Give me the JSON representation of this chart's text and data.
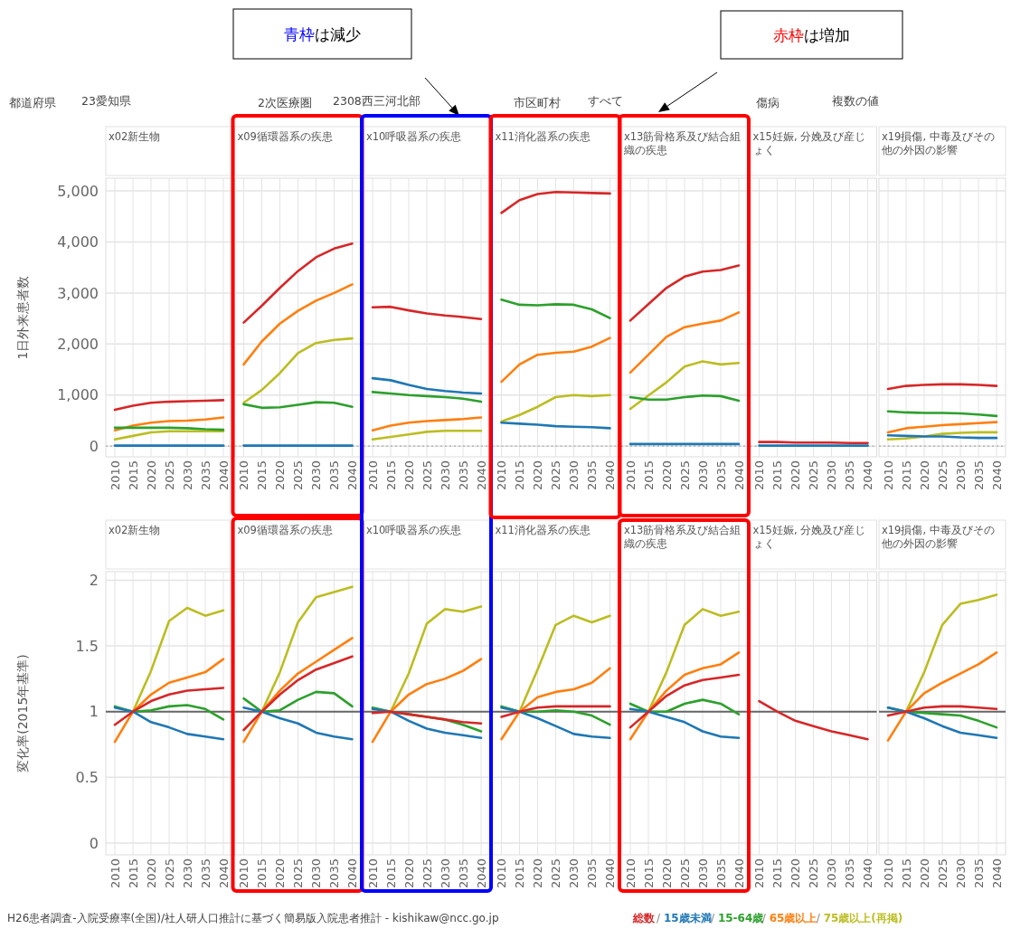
{
  "chart_data": [
    {
      "type": "line",
      "title": "x02新生物",
      "ylabel": "1日外来患者数",
      "x": [
        2010,
        2015,
        2020,
        2025,
        2030,
        2035,
        2040
      ],
      "xlim": [
        2007.5,
        2042.5
      ],
      "xticks": [
        2010,
        2015,
        2020,
        2025,
        2030,
        2035,
        2040
      ],
      "ylim": [
        -210,
        5250
      ],
      "yticks": [
        {
          "value": 0,
          "label": "0"
        },
        {
          "value": 1000,
          "label": "1,000"
        },
        {
          "value": 2000,
          "label": "2,000"
        },
        {
          "value": 3000,
          "label": "3,000"
        },
        {
          "value": 4000,
          "label": "4,000"
        },
        {
          "value": 5000,
          "label": "5,000"
        }
      ],
      "grid": true,
      "ref_lines": [
        {
          "axis": "y",
          "value": 0,
          "color": "#aaaaaa",
          "line_style": "dotted"
        }
      ],
      "annotations": [
        "都道府県",
        "23愛知県",
        "2次医療圏",
        "2308西三河北部",
        "市区町村",
        "すべて",
        "傷病",
        "複数の値",
        "青枠は減少",
        "赤枠は増加"
      ],
      "series": [
        {
          "color": "#d62728",
          "values": [
            710,
            790,
            850,
            870,
            880,
            890,
            900
          ]
        },
        {
          "color": "#1f77b4",
          "values": [
            10,
            10,
            10,
            10,
            10,
            10,
            10
          ]
        },
        {
          "color": "#2ca02c",
          "values": [
            360,
            360,
            360,
            360,
            350,
            330,
            320
          ]
        },
        {
          "color": "#ff7f0e",
          "values": [
            310,
            400,
            460,
            490,
            500,
            520,
            560
          ]
        },
        {
          "color": "#bcbd22",
          "values": [
            130,
            200,
            270,
            290,
            290,
            290,
            290
          ]
        }
      ]
    },
    {
      "type": "line",
      "title": "x09循環器系の疾患",
      "x": [
        2010,
        2015,
        2020,
        2025,
        2030,
        2035,
        2040
      ],
      "xlim": [
        2007.5,
        2042.5
      ],
      "xticks": [
        2010,
        2015,
        2020,
        2025,
        2030,
        2035,
        2040
      ],
      "ylim": [
        -210,
        5250
      ],
      "yticks": [
        0,
        1000,
        2000,
        3000,
        4000,
        5000
      ],
      "grid": true,
      "tick_labels": "x",
      "ref_lines": [
        {
          "axis": "y",
          "value": 0,
          "color": "#aaaaaa",
          "line_style": "dotted"
        }
      ],
      "series": [
        {
          "color": "#d62728",
          "values": [
            2420,
            2750,
            3100,
            3430,
            3700,
            3870,
            3970
          ]
        },
        {
          "color": "#1f77b4",
          "values": [
            10,
            10,
            10,
            10,
            10,
            10,
            10
          ]
        },
        {
          "color": "#2ca02c",
          "values": [
            820,
            750,
            760,
            810,
            860,
            850,
            770
          ]
        },
        {
          "color": "#ff7f0e",
          "values": [
            1600,
            2050,
            2400,
            2650,
            2850,
            3000,
            3170
          ]
        },
        {
          "color": "#bcbd22",
          "values": [
            850,
            1100,
            1430,
            1820,
            2020,
            2080,
            2110
          ]
        }
      ]
    },
    {
      "type": "line",
      "title": "x10呼吸器系の疾患",
      "x": [
        2010,
        2015,
        2020,
        2025,
        2030,
        2035,
        2040
      ],
      "xlim": [
        2007.5,
        2042.5
      ],
      "xticks": [
        2010,
        2015,
        2020,
        2025,
        2030,
        2035,
        2040
      ],
      "ylim": [
        -210,
        5250
      ],
      "yticks": [
        0,
        1000,
        2000,
        3000,
        4000,
        5000
      ],
      "grid": true,
      "tick_labels": "x",
      "ref_lines": [
        {
          "axis": "y",
          "value": 0,
          "color": "#aaaaaa",
          "line_style": "dotted"
        }
      ],
      "series": [
        {
          "color": "#d62728",
          "values": [
            2720,
            2730,
            2660,
            2600,
            2560,
            2530,
            2490
          ]
        },
        {
          "color": "#1f77b4",
          "values": [
            1330,
            1290,
            1200,
            1120,
            1080,
            1050,
            1030
          ]
        },
        {
          "color": "#2ca02c",
          "values": [
            1060,
            1030,
            1000,
            980,
            960,
            930,
            870
          ]
        },
        {
          "color": "#ff7f0e",
          "values": [
            310,
            400,
            460,
            490,
            510,
            530,
            560
          ]
        },
        {
          "color": "#bcbd22",
          "values": [
            130,
            180,
            230,
            280,
            300,
            300,
            300
          ]
        }
      ]
    },
    {
      "type": "line",
      "title": "x11消化器系の疾患",
      "x": [
        2010,
        2015,
        2020,
        2025,
        2030,
        2035,
        2040
      ],
      "xlim": [
        2007.5,
        2042.5
      ],
      "xticks": [
        2010,
        2015,
        2020,
        2025,
        2030,
        2035,
        2040
      ],
      "ylim": [
        -210,
        5250
      ],
      "yticks": [
        0,
        1000,
        2000,
        3000,
        4000,
        5000
      ],
      "grid": true,
      "tick_labels": "x",
      "ref_lines": [
        {
          "axis": "y",
          "value": 0,
          "color": "#aaaaaa",
          "line_style": "dotted"
        }
      ],
      "series": [
        {
          "color": "#d62728",
          "values": [
            4570,
            4820,
            4940,
            4980,
            4970,
            4960,
            4950
          ]
        },
        {
          "color": "#1f77b4",
          "values": [
            460,
            440,
            420,
            390,
            380,
            370,
            350
          ]
        },
        {
          "color": "#2ca02c",
          "values": [
            2870,
            2770,
            2760,
            2780,
            2770,
            2680,
            2510
          ]
        },
        {
          "color": "#ff7f0e",
          "values": [
            1260,
            1600,
            1790,
            1830,
            1850,
            1950,
            2120
          ]
        },
        {
          "color": "#bcbd22",
          "values": [
            480,
            610,
            770,
            960,
            1000,
            980,
            1000
          ]
        }
      ]
    },
    {
      "type": "line",
      "title": "x13筋骨格系及び結合組織の疾患",
      "x": [
        2010,
        2015,
        2020,
        2025,
        2030,
        2035,
        2040
      ],
      "xlim": [
        2007.5,
        2042.5
      ],
      "xticks": [
        2010,
        2015,
        2020,
        2025,
        2030,
        2035,
        2040
      ],
      "ylim": [
        -210,
        5250
      ],
      "yticks": [
        0,
        1000,
        2000,
        3000,
        4000,
        5000
      ],
      "grid": true,
      "tick_labels": "x",
      "ref_lines": [
        {
          "axis": "y",
          "value": 0,
          "color": "#aaaaaa",
          "line_style": "dotted"
        }
      ],
      "series": [
        {
          "color": "#d62728",
          "values": [
            2460,
            2780,
            3100,
            3320,
            3420,
            3450,
            3540
          ]
        },
        {
          "color": "#1f77b4",
          "values": [
            40,
            40,
            40,
            40,
            40,
            40,
            40
          ]
        },
        {
          "color": "#2ca02c",
          "values": [
            960,
            910,
            910,
            960,
            990,
            980,
            890
          ]
        },
        {
          "color": "#ff7f0e",
          "values": [
            1440,
            1790,
            2140,
            2330,
            2400,
            2460,
            2620
          ]
        },
        {
          "color": "#bcbd22",
          "values": [
            730,
            990,
            1250,
            1560,
            1660,
            1600,
            1630
          ]
        }
      ]
    },
    {
      "type": "line",
      "title": "x15妊娠, 分娩及び産じょく",
      "x": [
        2010,
        2015,
        2020,
        2025,
        2030,
        2035,
        2040
      ],
      "xlim": [
        2007.5,
        2042.5
      ],
      "xticks": [
        2010,
        2015,
        2020,
        2025,
        2030,
        2035,
        2040
      ],
      "ylim": [
        -210,
        5250
      ],
      "yticks": [
        0,
        1000,
        2000,
        3000,
        4000,
        5000
      ],
      "grid": true,
      "tick_labels": "x",
      "ref_lines": [
        {
          "axis": "y",
          "value": 0,
          "color": "#aaaaaa",
          "line_style": "dotted"
        }
      ],
      "series": [
        {
          "color": "#d62728",
          "values": [
            80,
            80,
            70,
            70,
            70,
            60,
            60
          ]
        },
        {
          "color": "#1f77b4",
          "values": [
            10,
            10,
            10,
            10,
            10,
            10,
            10
          ]
        }
      ]
    },
    {
      "type": "line",
      "title": "x19損傷, 中毒及びその他の外因の影響",
      "x": [
        2010,
        2015,
        2020,
        2025,
        2030,
        2035,
        2040
      ],
      "xlim": [
        2007.5,
        2042.5
      ],
      "xticks": [
        2010,
        2015,
        2020,
        2025,
        2030,
        2035,
        2040
      ],
      "ylim": [
        -210,
        5250
      ],
      "yticks": [
        0,
        1000,
        2000,
        3000,
        4000,
        5000
      ],
      "grid": true,
      "tick_labels": "x",
      "ref_lines": [
        {
          "axis": "y",
          "value": 0,
          "color": "#aaaaaa",
          "line_style": "dotted"
        }
      ],
      "series": [
        {
          "color": "#d62728",
          "values": [
            1120,
            1180,
            1200,
            1210,
            1210,
            1200,
            1180
          ]
        },
        {
          "color": "#1f77b4",
          "values": [
            210,
            200,
            190,
            190,
            170,
            160,
            160
          ]
        },
        {
          "color": "#2ca02c",
          "values": [
            680,
            660,
            650,
            650,
            640,
            620,
            590
          ]
        },
        {
          "color": "#ff7f0e",
          "values": [
            270,
            350,
            380,
            410,
            430,
            450,
            470
          ]
        },
        {
          "color": "#bcbd22",
          "values": [
            130,
            150,
            190,
            240,
            260,
            270,
            270
          ]
        }
      ]
    },
    {
      "type": "line",
      "title": "x02新生物",
      "ylabel": "変化率(2015年基準)",
      "x": [
        2010,
        2015,
        2020,
        2025,
        2030,
        2035,
        2040
      ],
      "xlim": [
        2007.5,
        2042.5
      ],
      "xticks": [
        2010,
        2015,
        2020,
        2025,
        2030,
        2035,
        2040
      ],
      "ylim": [
        -0.09,
        2.065
      ],
      "yticks": [
        0,
        0.5,
        1,
        1.5,
        2
      ],
      "grid": true,
      "legend": "bottom",
      "ref_lines": [
        {
          "axis": "y",
          "value": 1,
          "color": "#666666"
        }
      ],
      "annotations": [
        "H26患者調査-入院受療率(全国)/社人研人口推計に基づく簡易版入院患者推計 - kishikaw@ncc.go.jp",
        "/",
        "/",
        "/",
        "/"
      ],
      "series": [
        {
          "name": "総数",
          "color": "#d62728",
          "values": [
            0.9,
            1,
            1.08,
            1.13,
            1.16,
            1.17,
            1.18
          ]
        },
        {
          "name": "15歳未満",
          "color": "#1f77b4",
          "values": [
            1.03,
            1,
            0.92,
            0.88,
            0.83,
            0.81,
            0.79
          ]
        },
        {
          "name": "15-64歳",
          "color": "#2ca02c",
          "values": [
            1.04,
            1,
            1.01,
            1.04,
            1.05,
            1.02,
            0.94
          ]
        },
        {
          "name": "65歳以上",
          "color": "#ff7f0e",
          "values": [
            0.77,
            1,
            1.13,
            1.22,
            1.26,
            1.3,
            1.4
          ]
        },
        {
          "name": "75歳以上(再掲)",
          "color": "#bcbd22",
          "values": [
            null,
            1,
            1.31,
            1.69,
            1.79,
            1.73,
            1.77
          ]
        }
      ]
    },
    {
      "type": "line",
      "title": "x09循環器系の疾患",
      "x": [
        2010,
        2015,
        2020,
        2025,
        2030,
        2035,
        2040
      ],
      "xlim": [
        2007.5,
        2042.5
      ],
      "xticks": [
        2010,
        2015,
        2020,
        2025,
        2030,
        2035,
        2040
      ],
      "ylim": [
        -0.09,
        2.065
      ],
      "yticks": [
        0,
        0.5,
        1,
        1.5,
        2
      ],
      "grid": true,
      "tick_labels": "x",
      "ref_lines": [
        {
          "axis": "y",
          "value": 1,
          "color": "#666666"
        }
      ],
      "series": [
        {
          "color": "#d62728",
          "values": [
            0.86,
            1,
            1.13,
            1.24,
            1.32,
            1.37,
            1.42
          ]
        },
        {
          "color": "#1f77b4",
          "values": [
            1.03,
            1,
            0.95,
            0.91,
            0.84,
            0.81,
            0.79
          ]
        },
        {
          "color": "#2ca02c",
          "values": [
            1.1,
            1,
            1.01,
            1.09,
            1.15,
            1.14,
            1.04
          ]
        },
        {
          "color": "#ff7f0e",
          "values": [
            0.77,
            1,
            1.16,
            1.29,
            1.38,
            1.47,
            1.56
          ]
        },
        {
          "color": "#bcbd22",
          "values": [
            null,
            1,
            1.3,
            1.68,
            1.87,
            1.91,
            1.95
          ]
        }
      ]
    },
    {
      "type": "line",
      "title": "x10呼吸器系の疾患",
      "x": [
        2010,
        2015,
        2020,
        2025,
        2030,
        2035,
        2040
      ],
      "xlim": [
        2007.5,
        2042.5
      ],
      "xticks": [
        2010,
        2015,
        2020,
        2025,
        2030,
        2035,
        2040
      ],
      "ylim": [
        -0.09,
        2.065
      ],
      "yticks": [
        0,
        0.5,
        1,
        1.5,
        2
      ],
      "grid": true,
      "tick_labels": "x",
      "ref_lines": [
        {
          "axis": "y",
          "value": 1,
          "color": "#666666"
        }
      ],
      "series": [
        {
          "color": "#d62728",
          "values": [
            0.99,
            1,
            0.98,
            0.96,
            0.94,
            0.92,
            0.91
          ]
        },
        {
          "color": "#1f77b4",
          "values": [
            1.02,
            1,
            0.93,
            0.87,
            0.84,
            0.82,
            0.8
          ]
        },
        {
          "color": "#2ca02c",
          "values": [
            1.03,
            1,
            0.98,
            0.96,
            0.94,
            0.9,
            0.85
          ]
        },
        {
          "color": "#ff7f0e",
          "values": [
            0.77,
            1,
            1.13,
            1.21,
            1.25,
            1.31,
            1.4
          ]
        },
        {
          "color": "#bcbd22",
          "values": [
            null,
            1,
            1.29,
            1.67,
            1.78,
            1.76,
            1.8
          ]
        }
      ]
    },
    {
      "type": "line",
      "title": "x11消化器系の疾患",
      "x": [
        2010,
        2015,
        2020,
        2025,
        2030,
        2035,
        2040
      ],
      "xlim": [
        2007.5,
        2042.5
      ],
      "xticks": [
        2010,
        2015,
        2020,
        2025,
        2030,
        2035,
        2040
      ],
      "ylim": [
        -0.09,
        2.065
      ],
      "yticks": [
        0,
        0.5,
        1,
        1.5,
        2
      ],
      "grid": true,
      "tick_labels": "x",
      "ref_lines": [
        {
          "axis": "y",
          "value": 1,
          "color": "#666666"
        }
      ],
      "series": [
        {
          "color": "#d62728",
          "values": [
            0.96,
            1,
            1.03,
            1.04,
            1.04,
            1.04,
            1.04
          ]
        },
        {
          "color": "#1f77b4",
          "values": [
            1.03,
            1,
            0.95,
            0.89,
            0.83,
            0.81,
            0.8
          ]
        },
        {
          "color": "#2ca02c",
          "values": [
            1.04,
            1,
            1,
            1.01,
            1,
            0.97,
            0.9
          ]
        },
        {
          "color": "#ff7f0e",
          "values": [
            0.79,
            1,
            1.11,
            1.15,
            1.17,
            1.22,
            1.33
          ]
        },
        {
          "color": "#bcbd22",
          "values": [
            null,
            1,
            1.32,
            1.66,
            1.73,
            1.68,
            1.73
          ]
        }
      ]
    },
    {
      "type": "line",
      "title": "x13筋骨格系及び結合組織の疾患",
      "x": [
        2010,
        2015,
        2020,
        2025,
        2030,
        2035,
        2040
      ],
      "xlim": [
        2007.5,
        2042.5
      ],
      "xticks": [
        2010,
        2015,
        2020,
        2025,
        2030,
        2035,
        2040
      ],
      "ylim": [
        -0.09,
        2.065
      ],
      "yticks": [
        0,
        0.5,
        1,
        1.5,
        2
      ],
      "grid": true,
      "tick_labels": "x",
      "ref_lines": [
        {
          "axis": "y",
          "value": 1,
          "color": "#666666"
        }
      ],
      "series": [
        {
          "color": "#d62728",
          "values": [
            0.88,
            1,
            1.12,
            1.2,
            1.24,
            1.26,
            1.28
          ]
        },
        {
          "color": "#1f77b4",
          "values": [
            1.02,
            1,
            0.96,
            0.92,
            0.85,
            0.81,
            0.8
          ]
        },
        {
          "color": "#2ca02c",
          "values": [
            1.06,
            1,
            1,
            1.06,
            1.09,
            1.06,
            0.98
          ]
        },
        {
          "color": "#ff7f0e",
          "values": [
            0.79,
            1,
            1.16,
            1.28,
            1.33,
            1.36,
            1.45
          ]
        },
        {
          "color": "#bcbd22",
          "values": [
            null,
            1,
            1.3,
            1.66,
            1.78,
            1.73,
            1.76
          ]
        }
      ]
    },
    {
      "type": "line",
      "title": "x15妊娠, 分娩及び産じょく",
      "x": [
        2010,
        2015,
        2020,
        2025,
        2030,
        2035,
        2040
      ],
      "xlim": [
        2007.5,
        2042.5
      ],
      "xticks": [
        2010,
        2015,
        2020,
        2025,
        2030,
        2035,
        2040
      ],
      "ylim": [
        -0.09,
        2.065
      ],
      "yticks": [
        0,
        0.5,
        1,
        1.5,
        2
      ],
      "grid": true,
      "tick_labels": "x",
      "ref_lines": [
        {
          "axis": "y",
          "value": 1,
          "color": "#666666"
        }
      ],
      "series": [
        {
          "color": "#d62728",
          "values": [
            1.08,
            1,
            0.93,
            0.89,
            0.85,
            0.82,
            0.79
          ]
        }
      ]
    },
    {
      "type": "line",
      "title": "x19損傷, 中毒及びその他の外因の影響",
      "x": [
        2010,
        2015,
        2020,
        2025,
        2030,
        2035,
        2040
      ],
      "xlim": [
        2007.5,
        2042.5
      ],
      "xticks": [
        2010,
        2015,
        2020,
        2025,
        2030,
        2035,
        2040
      ],
      "ylim": [
        -0.09,
        2.065
      ],
      "yticks": [
        0,
        0.5,
        1,
        1.5,
        2
      ],
      "grid": true,
      "tick_labels": "x",
      "ref_lines": [
        {
          "axis": "y",
          "value": 1,
          "color": "#666666"
        }
      ],
      "series": [
        {
          "color": "#d62728",
          "values": [
            0.97,
            1,
            1.03,
            1.04,
            1.04,
            1.03,
            1.02
          ]
        },
        {
          "color": "#1f77b4",
          "values": [
            1.03,
            1,
            0.95,
            0.89,
            0.84,
            0.82,
            0.8
          ]
        },
        {
          "color": "#2ca02c",
          "values": [
            1.03,
            1,
            0.99,
            0.98,
            0.97,
            0.93,
            0.88
          ]
        },
        {
          "color": "#ff7f0e",
          "values": [
            0.78,
            1,
            1.14,
            1.22,
            1.29,
            1.36,
            1.45
          ]
        },
        {
          "color": "#bcbd22",
          "values": [
            null,
            1,
            1.3,
            1.66,
            1.82,
            1.85,
            1.89
          ]
        }
      ]
    }
  ]
}
